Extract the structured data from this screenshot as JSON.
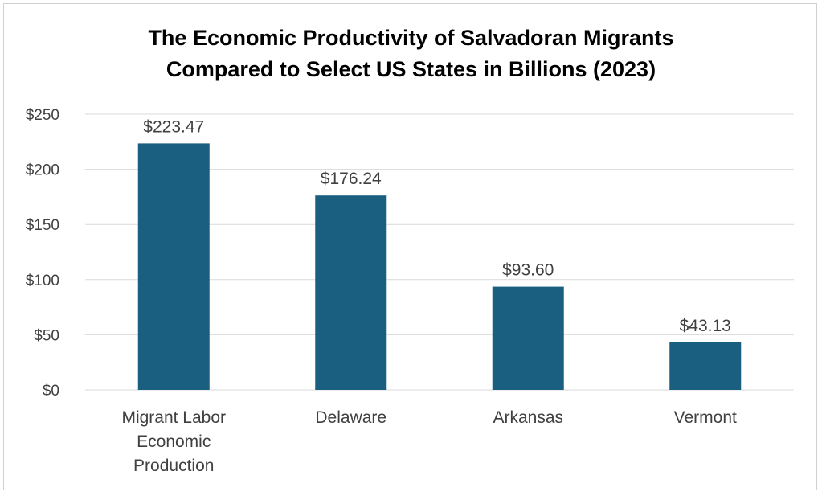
{
  "chart_data": {
    "type": "bar",
    "title_lines": [
      "The Economic Productivity of Salvadoran Migrants",
      "Compared to Select US States in Billions (2023)"
    ],
    "categories": [
      [
        "Migrant Labor",
        "Economic",
        "Production"
      ],
      [
        "Delaware"
      ],
      [
        "Arkansas"
      ],
      [
        "Vermont"
      ]
    ],
    "values": [
      223.47,
      176.24,
      93.6,
      43.13
    ],
    "data_labels": [
      "$223.47",
      "$176.24",
      "$93.60",
      "$43.13"
    ],
    "y_ticks": [
      0,
      50,
      100,
      150,
      200,
      250
    ],
    "y_tick_labels": [
      "$0",
      "$50",
      "$100",
      "$150",
      "$200",
      "$250"
    ],
    "ylim": [
      0,
      250
    ],
    "grid": true,
    "legend": "none",
    "colors": {
      "bar": "#1a5e80",
      "gridline": "#d9d9d9",
      "axis": "#d9d9d9",
      "text": "#404040",
      "title": "#000000"
    }
  }
}
